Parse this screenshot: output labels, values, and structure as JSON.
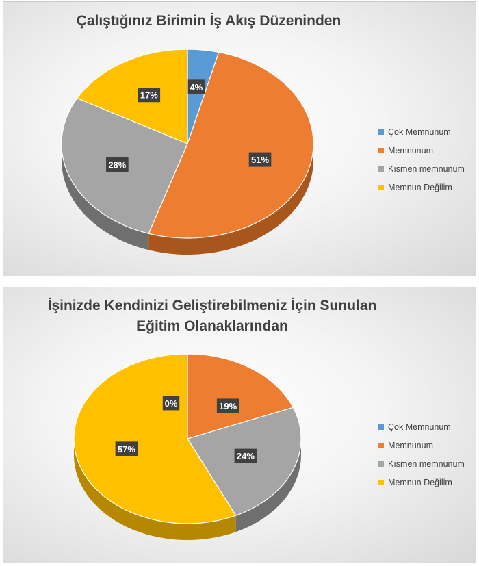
{
  "legend_labels": [
    "Çok Memnunum",
    "Memnunum",
    "Kısmen memnunum",
    "Memnun Değilim"
  ],
  "colors": [
    "#5b9bd5",
    "#ed7d31",
    "#a5a5a5",
    "#ffc000"
  ],
  "dark_colors": [
    "#3a6c99",
    "#a9561d",
    "#6f6f6f",
    "#b58800"
  ],
  "chart_data": [
    {
      "type": "pie",
      "title": "Çalıştığınız Birimin İş Akış Düzeninden",
      "title_lines": [
        "Çalıştığınız Birimin İş Akış Düzeninden"
      ],
      "categories": [
        "Çok Memnunum",
        "Memnunum",
        "Kısmen memnunum",
        "Memnun Değilim"
      ],
      "values": [
        4,
        51,
        28,
        17
      ],
      "data_labels": [
        "4%",
        "51%",
        "28%",
        "17%"
      ],
      "legend_position": "right"
    },
    {
      "type": "pie",
      "title": "İşinizde Kendinizi Geliştirebilmeniz İçin Sunulan Eğitim Olanaklarından",
      "title_lines": [
        "İşinizde Kendinizi Geliştirebilmeniz İçin Sunulan",
        "Eğitim Olanaklarından"
      ],
      "categories": [
        "Çok Memnunum",
        "Memnunum",
        "Kısmen memnunum",
        "Memnun Değilim"
      ],
      "values": [
        0,
        19,
        24,
        57
      ],
      "data_labels": [
        "0%",
        "19%",
        "24%",
        "57%"
      ],
      "legend_position": "right"
    }
  ]
}
